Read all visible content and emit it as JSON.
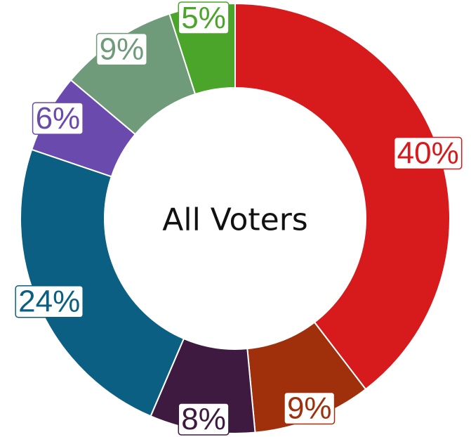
{
  "chart_data": {
    "type": "donut",
    "center_label": "All Voters",
    "values": [
      40,
      9,
      8,
      24,
      6,
      9,
      5
    ],
    "value_labels": [
      "40%",
      "9%",
      "8%",
      "24%",
      "6%",
      "9%",
      "5%"
    ],
    "colors": [
      "#d71a1c",
      "#a0300b",
      "#3f1a40",
      "#0a5f82",
      "#6a4aad",
      "#6f9b7b",
      "#4aa52a"
    ]
  }
}
